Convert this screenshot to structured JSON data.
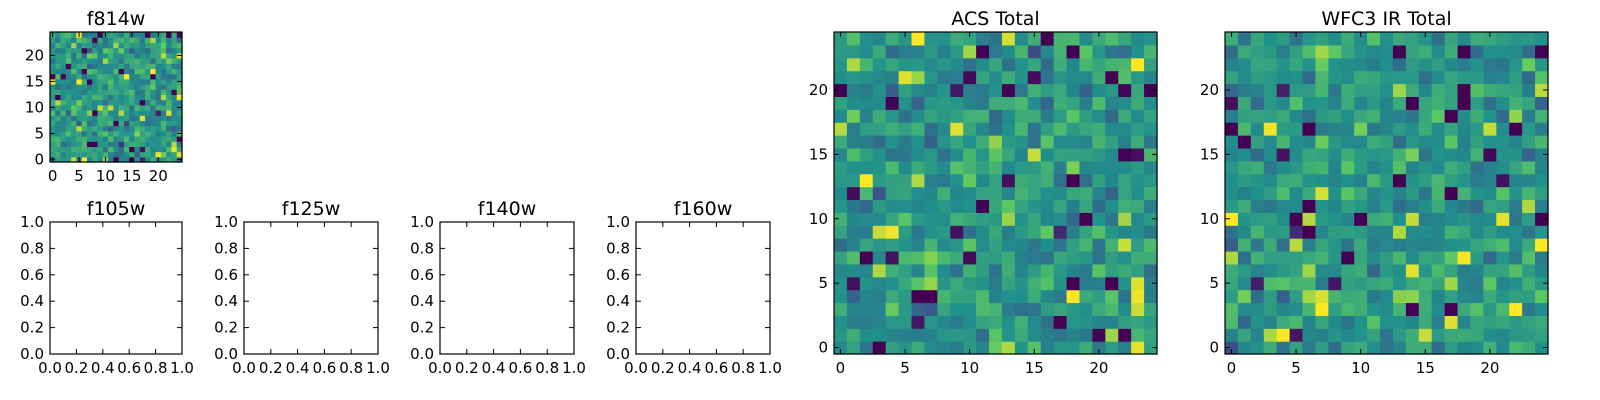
{
  "chart_data": [
    {
      "type": "heatmap",
      "title": "f814w",
      "xlabel": "",
      "ylabel": "",
      "grid_size": [
        25,
        25
      ],
      "xlim": [
        -0.5,
        24.5
      ],
      "ylim": [
        -0.5,
        24.5
      ],
      "xticks": [
        0,
        5,
        10,
        15,
        20
      ],
      "yticks": [
        0,
        5,
        10,
        15,
        20
      ],
      "colormap": "viridis",
      "seed": 11,
      "value_range": [
        0,
        1
      ]
    },
    {
      "type": "heatmap",
      "title": "f105w",
      "xlabel": "",
      "ylabel": "",
      "empty": true,
      "xlim": [
        0,
        1
      ],
      "ylim": [
        0,
        1
      ],
      "xticks": [
        "0.0",
        "0.2",
        "0.4",
        "0.6",
        "0.8",
        "1.0"
      ],
      "yticks": [
        "0.0",
        "0.2",
        "0.4",
        "0.6",
        "0.8",
        "1.0"
      ]
    },
    {
      "type": "heatmap",
      "title": "f125w",
      "xlabel": "",
      "ylabel": "",
      "empty": true,
      "xlim": [
        0,
        1
      ],
      "ylim": [
        0,
        1
      ],
      "xticks": [
        "0.0",
        "0.2",
        "0.4",
        "0.6",
        "0.8",
        "1.0"
      ],
      "yticks": [
        "0.0",
        "0.2",
        "0.4",
        "0.6",
        "0.8",
        "1.0"
      ]
    },
    {
      "type": "heatmap",
      "title": "f140w",
      "xlabel": "",
      "ylabel": "",
      "empty": true,
      "xlim": [
        0,
        1
      ],
      "ylim": [
        0,
        1
      ],
      "xticks": [
        "0.0",
        "0.2",
        "0.4",
        "0.6",
        "0.8",
        "1.0"
      ],
      "yticks": [
        "0.0",
        "0.2",
        "0.4",
        "0.6",
        "0.8",
        "1.0"
      ]
    },
    {
      "type": "heatmap",
      "title": "f160w",
      "xlabel": "",
      "ylabel": "",
      "empty": true,
      "xlim": [
        0,
        1
      ],
      "ylim": [
        0,
        1
      ],
      "xticks": [
        "0.0",
        "0.2",
        "0.4",
        "0.6",
        "0.8",
        "1.0"
      ],
      "yticks": [
        "0.0",
        "0.2",
        "0.4",
        "0.6",
        "0.8",
        "1.0"
      ]
    },
    {
      "type": "heatmap",
      "title": "ACS Total",
      "xlabel": "",
      "ylabel": "",
      "grid_size": [
        25,
        25
      ],
      "xlim": [
        -0.5,
        24.5
      ],
      "ylim": [
        -0.5,
        24.5
      ],
      "xticks": [
        0,
        5,
        10,
        15,
        20
      ],
      "yticks": [
        0,
        5,
        10,
        15,
        20
      ],
      "colormap": "viridis",
      "seed": 23,
      "value_range": [
        0,
        1
      ]
    },
    {
      "type": "heatmap",
      "title": "WFC3 IR Total",
      "xlabel": "",
      "ylabel": "",
      "grid_size": [
        25,
        25
      ],
      "xlim": [
        -0.5,
        24.5
      ],
      "ylim": [
        -0.5,
        24.5
      ],
      "xticks": [
        0,
        5,
        10,
        15,
        20
      ],
      "yticks": [
        0,
        5,
        10,
        15,
        20
      ],
      "colormap": "viridis",
      "seed": 37,
      "value_range": [
        0,
        1
      ]
    }
  ],
  "colors": {
    "viridis": [
      "#440154",
      "#3b528b",
      "#21918c",
      "#5ec962",
      "#fde725"
    ],
    "axes": "#000000",
    "background": "#ffffff"
  }
}
